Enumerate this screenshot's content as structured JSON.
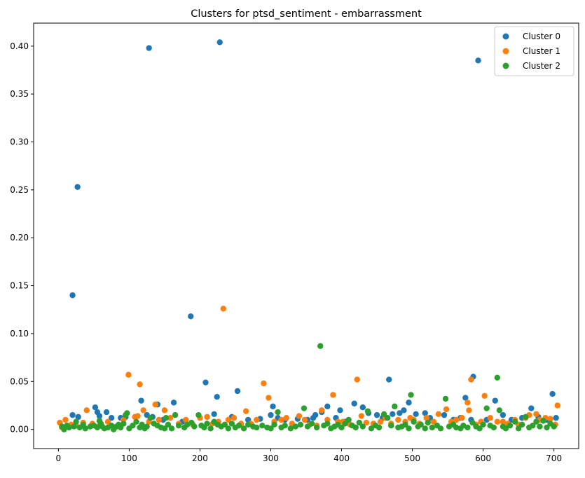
{
  "chart_data": {
    "type": "scatter",
    "title": "Clusters for ptsd_sentiment - embarrassment",
    "xlabel": "",
    "ylabel": "",
    "xlim": [
      -35,
      735
    ],
    "ylim": [
      -0.02,
      0.424
    ],
    "xticks": [
      0,
      100,
      200,
      300,
      400,
      500,
      600,
      700
    ],
    "yticks": [
      0.0,
      0.05,
      0.1,
      0.15,
      0.2,
      0.25,
      0.3,
      0.35,
      0.4
    ],
    "grid": false,
    "legend_position": "top-right",
    "series": [
      {
        "name": "Cluster 0",
        "color": "#1f77b4",
        "points": [
          [
            20,
            0.14
          ],
          [
            20,
            0.015
          ],
          [
            27,
            0.253
          ],
          [
            28,
            0.013
          ],
          [
            52,
            0.023
          ],
          [
            55,
            0.018
          ],
          [
            58,
            0.014
          ],
          [
            68,
            0.018
          ],
          [
            75,
            0.012
          ],
          [
            88,
            0.012
          ],
          [
            95,
            0.013
          ],
          [
            117,
            0.03
          ],
          [
            125,
            0.015
          ],
          [
            128,
            0.398
          ],
          [
            133,
            0.013
          ],
          [
            140,
            0.026
          ],
          [
            148,
            0.01
          ],
          [
            163,
            0.028
          ],
          [
            175,
            0.008
          ],
          [
            187,
            0.118
          ],
          [
            208,
            0.049
          ],
          [
            220,
            0.016
          ],
          [
            224,
            0.034
          ],
          [
            228,
            0.404
          ],
          [
            245,
            0.013
          ],
          [
            253,
            0.04
          ],
          [
            268,
            0.01
          ],
          [
            285,
            0.011
          ],
          [
            300,
            0.015
          ],
          [
            303,
            0.024
          ],
          [
            310,
            0.012
          ],
          [
            320,
            0.01
          ],
          [
            338,
            0.011
          ],
          [
            352,
            0.01
          ],
          [
            360,
            0.012
          ],
          [
            363,
            0.015
          ],
          [
            372,
            0.018
          ],
          [
            380,
            0.024
          ],
          [
            392,
            0.012
          ],
          [
            398,
            0.02
          ],
          [
            405,
            0.008
          ],
          [
            418,
            0.027
          ],
          [
            430,
            0.023
          ],
          [
            438,
            0.017
          ],
          [
            450,
            0.015
          ],
          [
            458,
            0.012
          ],
          [
            467,
            0.052
          ],
          [
            472,
            0.016
          ],
          [
            482,
            0.017
          ],
          [
            488,
            0.02
          ],
          [
            495,
            0.028
          ],
          [
            505,
            0.016
          ],
          [
            518,
            0.017
          ],
          [
            525,
            0.012
          ],
          [
            545,
            0.015
          ],
          [
            558,
            0.01
          ],
          [
            568,
            0.012
          ],
          [
            575,
            0.033
          ],
          [
            583,
            0.01
          ],
          [
            586,
            0.055
          ],
          [
            593,
            0.385
          ],
          [
            605,
            0.01
          ],
          [
            617,
            0.03
          ],
          [
            628,
            0.015
          ],
          [
            640,
            0.01
          ],
          [
            655,
            0.012
          ],
          [
            668,
            0.022
          ],
          [
            678,
            0.013
          ],
          [
            690,
            0.01
          ],
          [
            698,
            0.037
          ],
          [
            703,
            0.012
          ]
        ]
      },
      {
        "name": "Cluster 1",
        "color": "#ff7f0e",
        "points": [
          [
            2,
            0.007
          ],
          [
            5,
            0.002
          ],
          [
            10,
            0.01
          ],
          [
            18,
            0.005
          ],
          [
            25,
            0.004
          ],
          [
            35,
            0.007
          ],
          [
            40,
            0.02
          ],
          [
            48,
            0.006
          ],
          [
            55,
            0.003
          ],
          [
            70,
            0.008
          ],
          [
            80,
            0.002
          ],
          [
            92,
            0.01
          ],
          [
            99,
            0.057
          ],
          [
            108,
            0.013
          ],
          [
            115,
            0.047
          ],
          [
            112,
            0.014
          ],
          [
            120,
            0.02
          ],
          [
            128,
            0.008
          ],
          [
            137,
            0.026
          ],
          [
            142,
            0.01
          ],
          [
            150,
            0.02
          ],
          [
            158,
            0.012
          ],
          [
            170,
            0.006
          ],
          [
            180,
            0.01
          ],
          [
            190,
            0.005
          ],
          [
            200,
            0.012
          ],
          [
            210,
            0.013
          ],
          [
            218,
            0.006
          ],
          [
            226,
            0.008
          ],
          [
            233,
            0.126
          ],
          [
            240,
            0.01
          ],
          [
            248,
            0.012
          ],
          [
            258,
            0.006
          ],
          [
            265,
            0.019
          ],
          [
            272,
            0.006
          ],
          [
            280,
            0.01
          ],
          [
            290,
            0.048
          ],
          [
            297,
            0.033
          ],
          [
            305,
            0.008
          ],
          [
            315,
            0.01
          ],
          [
            322,
            0.012
          ],
          [
            330,
            0.006
          ],
          [
            340,
            0.014
          ],
          [
            348,
            0.01
          ],
          [
            355,
            0.005
          ],
          [
            365,
            0.004
          ],
          [
            372,
            0.02
          ],
          [
            380,
            0.01
          ],
          [
            388,
            0.036
          ],
          [
            395,
            0.008
          ],
          [
            402,
            0.008
          ],
          [
            412,
            0.005
          ],
          [
            422,
            0.052
          ],
          [
            428,
            0.014
          ],
          [
            435,
            0.007
          ],
          [
            445,
            0.006
          ],
          [
            455,
            0.008
          ],
          [
            462,
            0.012
          ],
          [
            470,
            0.006
          ],
          [
            480,
            0.01
          ],
          [
            490,
            0.008
          ],
          [
            497,
            0.012
          ],
          [
            502,
            0.01
          ],
          [
            510,
            0.006
          ],
          [
            520,
            0.012
          ],
          [
            530,
            0.008
          ],
          [
            537,
            0.016
          ],
          [
            548,
            0.021
          ],
          [
            555,
            0.008
          ],
          [
            562,
            0.01
          ],
          [
            570,
            0.012
          ],
          [
            578,
            0.028
          ],
          [
            580,
            0.02
          ],
          [
            583,
            0.052
          ],
          [
            590,
            0.005
          ],
          [
            597,
            0.008
          ],
          [
            602,
            0.035
          ],
          [
            610,
            0.012
          ],
          [
            620,
            0.008
          ],
          [
            628,
            0.008
          ],
          [
            635,
            0.006
          ],
          [
            645,
            0.01
          ],
          [
            650,
            0.005
          ],
          [
            660,
            0.012
          ],
          [
            665,
            0.015
          ],
          [
            675,
            0.016
          ],
          [
            680,
            0.01
          ],
          [
            688,
            0.012
          ],
          [
            695,
            0.011
          ],
          [
            702,
            0.005
          ],
          [
            705,
            0.025
          ]
        ]
      },
      {
        "name": "Cluster 2",
        "color": "#2ca02c",
        "points": [
          [
            5,
            0.003
          ],
          [
            8,
            0.0
          ],
          [
            12,
            0.004
          ],
          [
            15,
            0.002
          ],
          [
            22,
            0.003
          ],
          [
            25,
            0.008
          ],
          [
            30,
            0.002
          ],
          [
            35,
            0.005
          ],
          [
            38,
            0.001
          ],
          [
            45,
            0.003
          ],
          [
            50,
            0.004
          ],
          [
            55,
            0.002
          ],
          [
            58,
            0.009
          ],
          [
            60,
            0.006
          ],
          [
            62,
            0.003
          ],
          [
            65,
            0.001
          ],
          [
            70,
            0.002
          ],
          [
            75,
            0.004
          ],
          [
            78,
            0.0
          ],
          [
            82,
            0.003
          ],
          [
            85,
            0.005
          ],
          [
            88,
            0.002
          ],
          [
            92,
            0.006
          ],
          [
            95,
            0.015
          ],
          [
            97,
            0.017
          ],
          [
            100,
            0.001
          ],
          [
            105,
            0.004
          ],
          [
            110,
            0.008
          ],
          [
            115,
            0.002
          ],
          [
            118,
            0.005
          ],
          [
            122,
            0.001
          ],
          [
            125,
            0.003
          ],
          [
            130,
            0.012
          ],
          [
            135,
            0.006
          ],
          [
            140,
            0.004
          ],
          [
            145,
            0.002
          ],
          [
            150,
            0.001
          ],
          [
            152,
            0.012
          ],
          [
            155,
            0.005
          ],
          [
            160,
            0.001
          ],
          [
            165,
            0.015
          ],
          [
            170,
            0.004
          ],
          [
            178,
            0.002
          ],
          [
            182,
            0.005
          ],
          [
            188,
            0.007
          ],
          [
            192,
            0.003
          ],
          [
            198,
            0.015
          ],
          [
            202,
            0.004
          ],
          [
            206,
            0.002
          ],
          [
            210,
            0.006
          ],
          [
            215,
            0.001
          ],
          [
            220,
            0.008
          ],
          [
            225,
            0.005
          ],
          [
            230,
            0.003
          ],
          [
            235,
            0.005
          ],
          [
            240,
            0.001
          ],
          [
            245,
            0.006
          ],
          [
            250,
            0.002
          ],
          [
            255,
            0.004
          ],
          [
            262,
            0.001
          ],
          [
            268,
            0.005
          ],
          [
            275,
            0.003
          ],
          [
            280,
            0.002
          ],
          [
            288,
            0.004
          ],
          [
            295,
            0.002
          ],
          [
            300,
            0.001
          ],
          [
            305,
            0.005
          ],
          [
            310,
            0.018
          ],
          [
            315,
            0.002
          ],
          [
            320,
            0.004
          ],
          [
            328,
            0.001
          ],
          [
            335,
            0.003
          ],
          [
            342,
            0.005
          ],
          [
            347,
            0.022
          ],
          [
            352,
            0.003
          ],
          [
            358,
            0.006
          ],
          [
            365,
            0.002
          ],
          [
            370,
            0.087
          ],
          [
            375,
            0.004
          ],
          [
            380,
            0.006
          ],
          [
            385,
            0.001
          ],
          [
            390,
            0.003
          ],
          [
            395,
            0.005
          ],
          [
            400,
            0.002
          ],
          [
            405,
            0.006
          ],
          [
            410,
            0.01
          ],
          [
            415,
            0.004
          ],
          [
            420,
            0.002
          ],
          [
            425,
            0.007
          ],
          [
            430,
            0.003
          ],
          [
            437,
            0.019
          ],
          [
            442,
            0.001
          ],
          [
            448,
            0.004
          ],
          [
            453,
            0.002
          ],
          [
            460,
            0.016
          ],
          [
            465,
            0.012
          ],
          [
            470,
            0.004
          ],
          [
            475,
            0.024
          ],
          [
            480,
            0.002
          ],
          [
            485,
            0.003
          ],
          [
            490,
            0.005
          ],
          [
            495,
            0.001
          ],
          [
            498,
            0.036
          ],
          [
            502,
            0.008
          ],
          [
            508,
            0.003
          ],
          [
            512,
            0.005
          ],
          [
            518,
            0.001
          ],
          [
            522,
            0.007
          ],
          [
            528,
            0.002
          ],
          [
            535,
            0.004
          ],
          [
            540,
            0.001
          ],
          [
            547,
            0.032
          ],
          [
            552,
            0.003
          ],
          [
            558,
            0.005
          ],
          [
            562,
            0.002
          ],
          [
            568,
            0.001
          ],
          [
            572,
            0.004
          ],
          [
            578,
            0.002
          ],
          [
            585,
            0.007
          ],
          [
            590,
            0.003
          ],
          [
            595,
            0.001
          ],
          [
            600,
            0.005
          ],
          [
            605,
            0.022
          ],
          [
            610,
            0.004
          ],
          [
            615,
            0.002
          ],
          [
            620,
            0.054
          ],
          [
            623,
            0.02
          ],
          [
            628,
            0.003
          ],
          [
            632,
            0.001
          ],
          [
            638,
            0.004
          ],
          [
            645,
            0.008
          ],
          [
            650,
            0.001
          ],
          [
            655,
            0.005
          ],
          [
            660,
            0.013
          ],
          [
            665,
            0.002
          ],
          [
            670,
            0.004
          ],
          [
            675,
            0.008
          ],
          [
            680,
            0.003
          ],
          [
            685,
            0.009
          ],
          [
            690,
            0.002
          ],
          [
            695,
            0.006
          ],
          [
            700,
            0.003
          ]
        ]
      }
    ]
  }
}
